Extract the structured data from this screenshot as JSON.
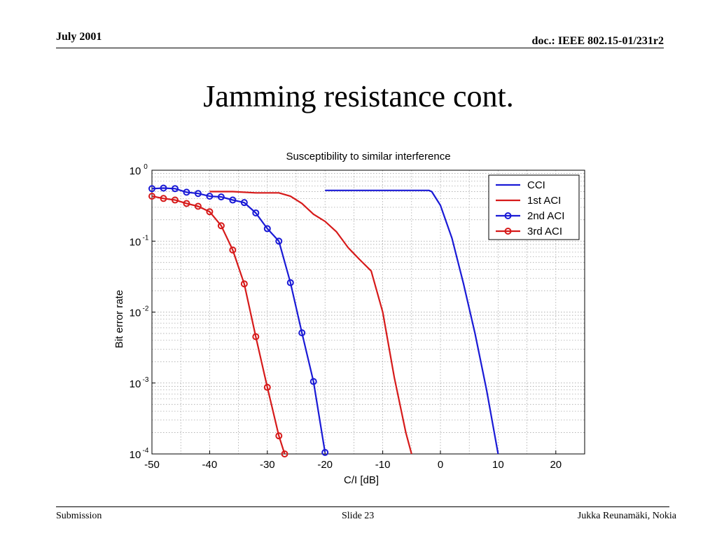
{
  "header": {
    "date": "July 2001",
    "doc": "doc.: IEEE 802.15-01/231r2"
  },
  "slide": {
    "title": "Jamming resistance cont."
  },
  "footer": {
    "left": "Submission",
    "center": "Slide 23",
    "right": "Jukka Reunamäki, Nokia"
  },
  "chart_data": {
    "type": "line",
    "title": "Susceptibility to similar interference",
    "xlabel": "C/I [dB]",
    "ylabel": "Bit error rate",
    "xlim": [
      -50,
      25
    ],
    "ylim": [
      0.0001,
      1
    ],
    "yscale": "log",
    "grid": true,
    "legend_position": "top-right",
    "x_ticks": [
      -50,
      -40,
      -30,
      -20,
      -10,
      0,
      10,
      20
    ],
    "y_ticks": [
      {
        "value": 1,
        "base": "10",
        "exp": "0"
      },
      {
        "value": 0.1,
        "base": "10",
        "exp": "-1"
      },
      {
        "value": 0.01,
        "base": "10",
        "exp": "-2"
      },
      {
        "value": 0.001,
        "base": "10",
        "exp": "-3"
      },
      {
        "value": 0.0001,
        "base": "10",
        "exp": "-4"
      }
    ],
    "series": [
      {
        "name": "CCI",
        "color": "#1a1ad6",
        "markers": false,
        "points": [
          [
            -20,
            0.52
          ],
          [
            -2,
            0.52
          ],
          [
            -1.5,
            0.5
          ],
          [
            0,
            0.32
          ],
          [
            2,
            0.11
          ],
          [
            4,
            0.025
          ],
          [
            6,
            0.005
          ],
          [
            8,
            0.0008
          ],
          [
            10,
            0.0001
          ]
        ]
      },
      {
        "name": "1st ACI",
        "color": "#d61a1a",
        "markers": false,
        "points": [
          [
            -40,
            0.5
          ],
          [
            -36,
            0.5
          ],
          [
            -32,
            0.48
          ],
          [
            -28,
            0.48
          ],
          [
            -26,
            0.43
          ],
          [
            -24,
            0.34
          ],
          [
            -22,
            0.24
          ],
          [
            -20,
            0.19
          ],
          [
            -18,
            0.135
          ],
          [
            -16,
            0.081
          ],
          [
            -14,
            0.055
          ],
          [
            -12,
            0.038
          ],
          [
            -10,
            0.01
          ],
          [
            -8,
            0.0012
          ],
          [
            -6,
            0.0002
          ],
          [
            -5,
            0.0001
          ]
        ]
      },
      {
        "name": "2nd ACI",
        "color": "#1a1ad6",
        "markers": true,
        "points": [
          [
            -50,
            0.55
          ],
          [
            -48,
            0.56
          ],
          [
            -46,
            0.55
          ],
          [
            -44,
            0.49
          ],
          [
            -42,
            0.47
          ],
          [
            -40,
            0.43
          ],
          [
            -38,
            0.42
          ],
          [
            -36,
            0.38
          ],
          [
            -34,
            0.35
          ],
          [
            -32,
            0.25
          ],
          [
            -30,
            0.15
          ],
          [
            -28,
            0.1
          ],
          [
            -26,
            0.026
          ],
          [
            -24,
            0.0051
          ],
          [
            -22,
            0.00105
          ],
          [
            -20,
            0.000105
          ]
        ]
      },
      {
        "name": "3rd ACI",
        "color": "#d61a1a",
        "markers": true,
        "points": [
          [
            -50,
            0.43
          ],
          [
            -48,
            0.4
          ],
          [
            -46,
            0.38
          ],
          [
            -44,
            0.34
          ],
          [
            -42,
            0.31
          ],
          [
            -40,
            0.26
          ],
          [
            -38,
            0.165
          ],
          [
            -36,
            0.075
          ],
          [
            -34,
            0.025
          ],
          [
            -32,
            0.0045
          ],
          [
            -30,
            0.00087
          ],
          [
            -28,
            0.00018
          ],
          [
            -27,
            0.0001
          ]
        ]
      }
    ]
  }
}
